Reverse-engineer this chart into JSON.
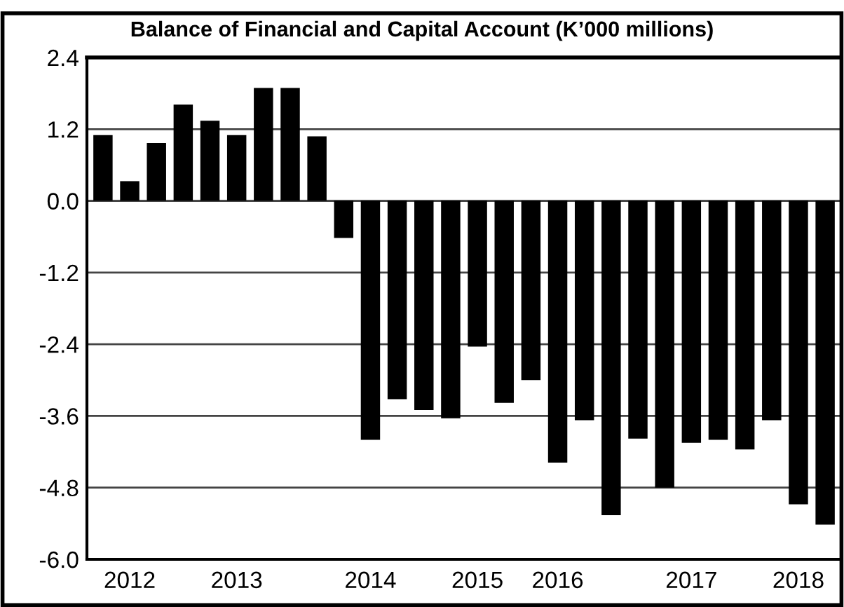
{
  "chart_data": {
    "type": "bar",
    "title": "Balance of Financial and Capital Account (K’000 millions)",
    "categories": [
      null,
      "2012",
      null,
      null,
      null,
      "2013",
      null,
      null,
      null,
      null,
      "2014",
      null,
      null,
      null,
      "2015",
      null,
      null,
      "2016",
      null,
      null,
      null,
      null,
      "2017",
      null,
      null,
      null,
      "2018",
      null
    ],
    "values": [
      1.1,
      0.33,
      0.97,
      1.61,
      1.34,
      1.1,
      1.89,
      1.89,
      1.08,
      -0.62,
      -4.0,
      -3.32,
      -3.5,
      -3.64,
      -2.44,
      -3.38,
      -3.0,
      -4.38,
      -3.67,
      -5.26,
      -3.98,
      -4.8,
      -4.05,
      -4.0,
      -4.16,
      -3.67,
      -5.08,
      -5.42
    ],
    "color": "#000000",
    "ylim": [
      -6.0,
      2.4
    ],
    "yticks": [
      {
        "value": -6.0,
        "label": "-6.0"
      },
      {
        "value": -4.8,
        "label": "-4.8"
      },
      {
        "value": -3.6,
        "label": "-3.6"
      },
      {
        "value": -2.4,
        "label": "-2.4"
      },
      {
        "value": -1.2,
        "label": "-1.2"
      },
      {
        "value": 0.0,
        "label": "0.0"
      },
      {
        "value": 1.2,
        "label": "1.2"
      },
      {
        "value": 2.4,
        "label": "2.4"
      }
    ],
    "grid": "y"
  }
}
